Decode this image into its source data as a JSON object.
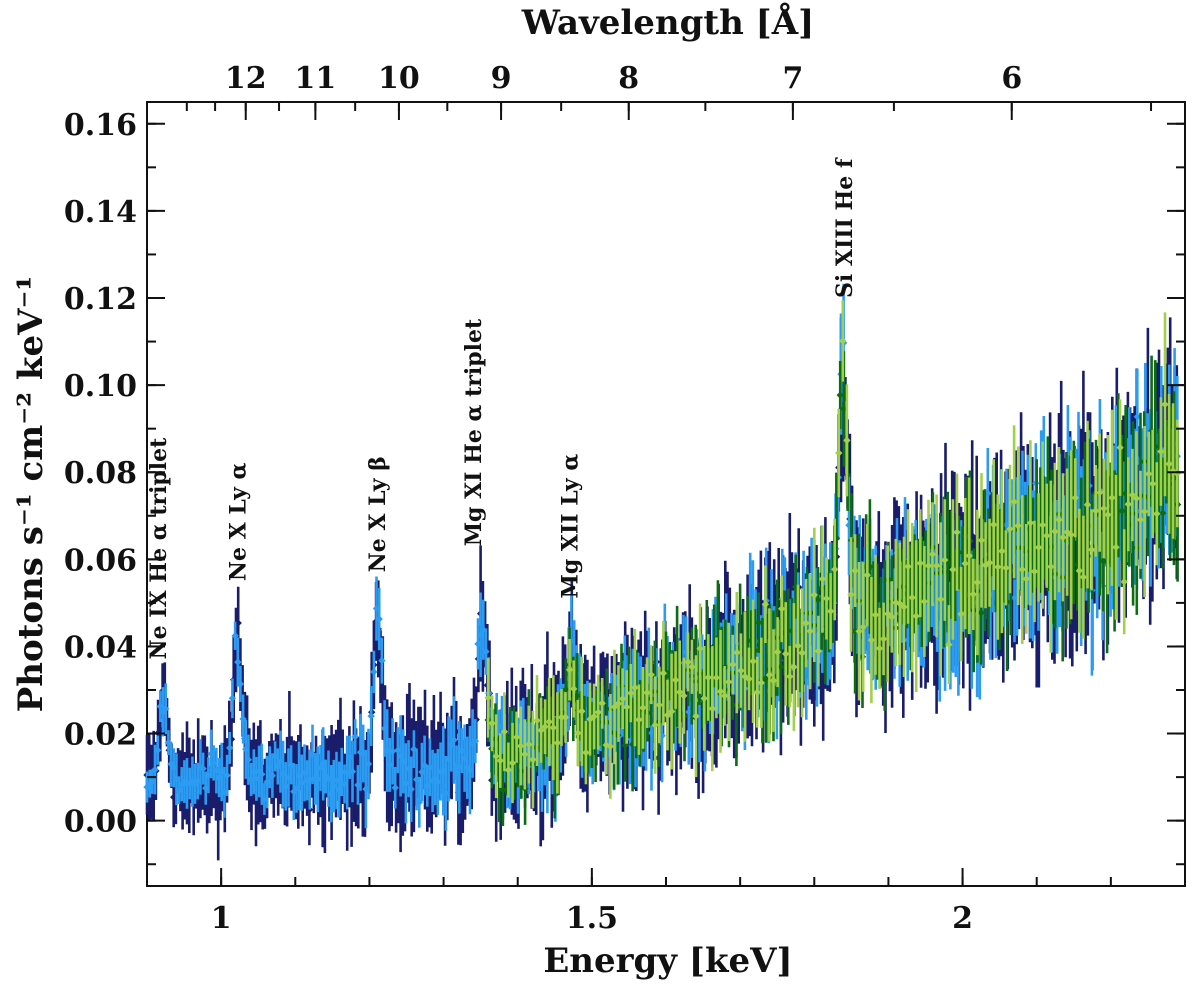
{
  "chart_data": {
    "type": "scatter",
    "title": "",
    "xlabel": "Energy [keV]",
    "ylabel": "Photons s⁻¹ cm⁻² keV⁻¹",
    "top_xlabel": "Wavelength [Å]",
    "xlim": [
      0.9,
      2.3
    ],
    "ylim": [
      -0.015,
      0.165
    ],
    "x_ticks": [
      1,
      1.5,
      2
    ],
    "x_tick_labels": [
      "1",
      "1.5",
      "2"
    ],
    "y_ticks": [
      0.0,
      0.02,
      0.04,
      0.06,
      0.08,
      0.1,
      0.12,
      0.14,
      0.16
    ],
    "y_tick_labels": [
      "0.00",
      "0.02",
      "0.04",
      "0.06",
      "0.08",
      "0.10",
      "0.12",
      "0.14",
      "0.16"
    ],
    "top_ticks_wavelength": [
      12,
      11,
      10,
      9,
      8,
      7,
      6
    ],
    "top_tick_labels": [
      "12",
      "11",
      "10",
      "9",
      "8",
      "7",
      "6"
    ],
    "hc_keV_angstrom": 12.398,
    "colors": {
      "dark_navy": "#1a1d6b",
      "light_blue": "#2b9cf2",
      "dark_green": "#0d6b12",
      "light_green": "#a3cf4a",
      "axis": "#111111"
    },
    "series": [
      {
        "name": "dark_navy",
        "color": "#1a1d6b",
        "x_range": [
          0.9,
          2.29
        ],
        "step": 0.003
      },
      {
        "name": "light_blue",
        "color": "#2b9cf2",
        "x_range": [
          0.9,
          2.29
        ],
        "step": 0.0036
      },
      {
        "name": "dark_green",
        "color": "#0d6b12",
        "x_range": [
          1.36,
          2.29
        ],
        "step": 0.005
      },
      {
        "name": "light_green",
        "color": "#a3cf4a",
        "x_range": [
          1.36,
          2.29
        ],
        "step": 0.0055
      }
    ],
    "continuum": [
      [
        0.9,
        0.008
      ],
      [
        1.15,
        0.01
      ],
      [
        1.3,
        0.012
      ],
      [
        1.4,
        0.016
      ],
      [
        1.5,
        0.022
      ],
      [
        1.6,
        0.028
      ],
      [
        1.7,
        0.036
      ],
      [
        1.8,
        0.045
      ],
      [
        1.9,
        0.05
      ],
      [
        2.0,
        0.055
      ],
      [
        2.1,
        0.064
      ],
      [
        2.2,
        0.07
      ],
      [
        2.29,
        0.082
      ]
    ],
    "emission_peaks": [
      {
        "x": 0.922,
        "y": 0.027
      },
      {
        "x": 1.022,
        "y": 0.042
      },
      {
        "x": 1.211,
        "y": 0.045
      },
      {
        "x": 1.352,
        "y": 0.048
      },
      {
        "x": 1.473,
        "y": 0.037
      },
      {
        "x": 1.839,
        "y": 0.103
      }
    ],
    "annotations": [
      {
        "label": "Ne IX He α triplet",
        "x": 0.915,
        "y_base": 0.037
      },
      {
        "label": "Ne X Ly α",
        "x": 1.022,
        "y_base": 0.055
      },
      {
        "label": "Ne X Ly β",
        "x": 1.21,
        "y_base": 0.057
      },
      {
        "label": "Mg XI He α triplet",
        "x": 1.34,
        "y_base": 0.063
      },
      {
        "label": "Mg XII Ly α",
        "x": 1.47,
        "y_base": 0.051
      },
      {
        "label": "Si XIII He f",
        "x": 1.84,
        "y_base": 0.12
      }
    ]
  }
}
